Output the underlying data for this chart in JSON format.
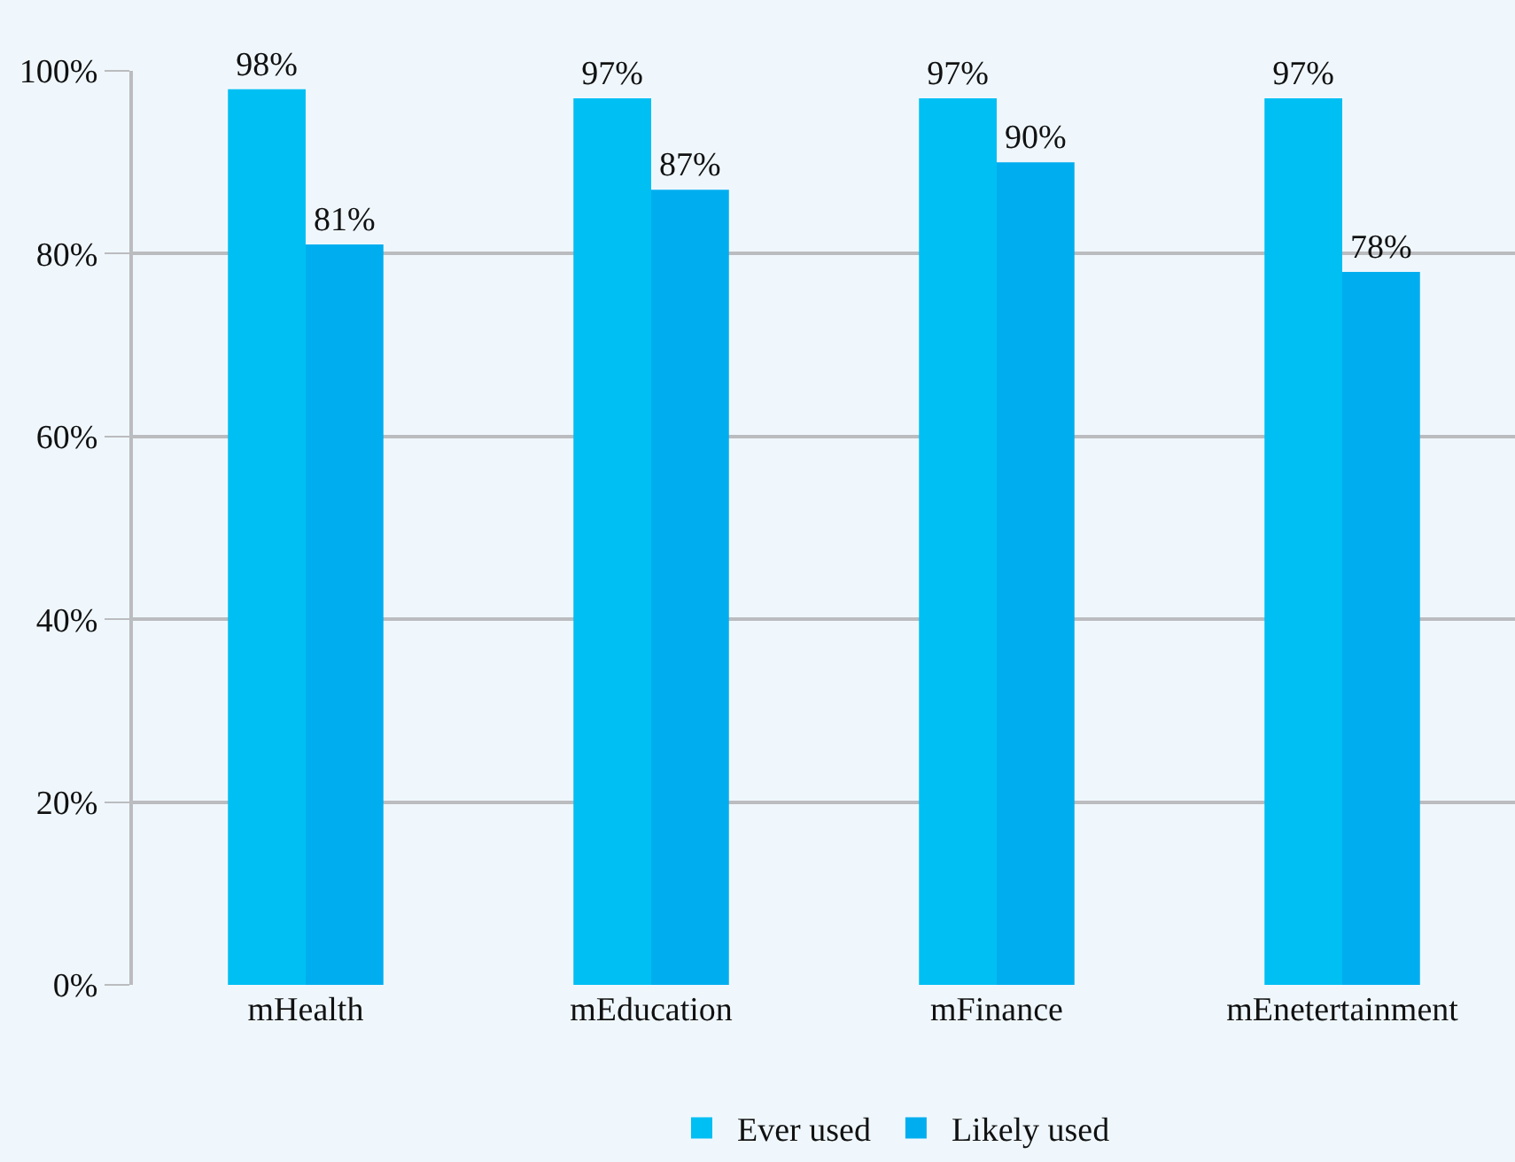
{
  "chart_data": {
    "type": "bar",
    "categories": [
      "mHealth",
      "mEducation",
      "mFinance",
      "mEnetertainment"
    ],
    "series": [
      {
        "name": "Ever used",
        "color": "#00bff3",
        "values": [
          98,
          97,
          97,
          97
        ],
        "value_labels": [
          "98%",
          "97%",
          "97%",
          "97%"
        ]
      },
      {
        "name": "Likely used",
        "color": "#00aeef",
        "values": [
          81,
          87,
          90,
          78
        ],
        "value_labels": [
          "81%",
          "87%",
          "90%",
          "78%"
        ]
      }
    ],
    "ylim": [
      0,
      100
    ],
    "yticks": [
      {
        "value": 0,
        "label": "0%"
      },
      {
        "value": 20,
        "label": "20%"
      },
      {
        "value": 40,
        "label": "40%"
      },
      {
        "value": 60,
        "label": "60%"
      },
      {
        "value": 80,
        "label": "80%"
      },
      {
        "value": 100,
        "label": "100%"
      }
    ],
    "grid": "y",
    "legend": "bottom"
  }
}
